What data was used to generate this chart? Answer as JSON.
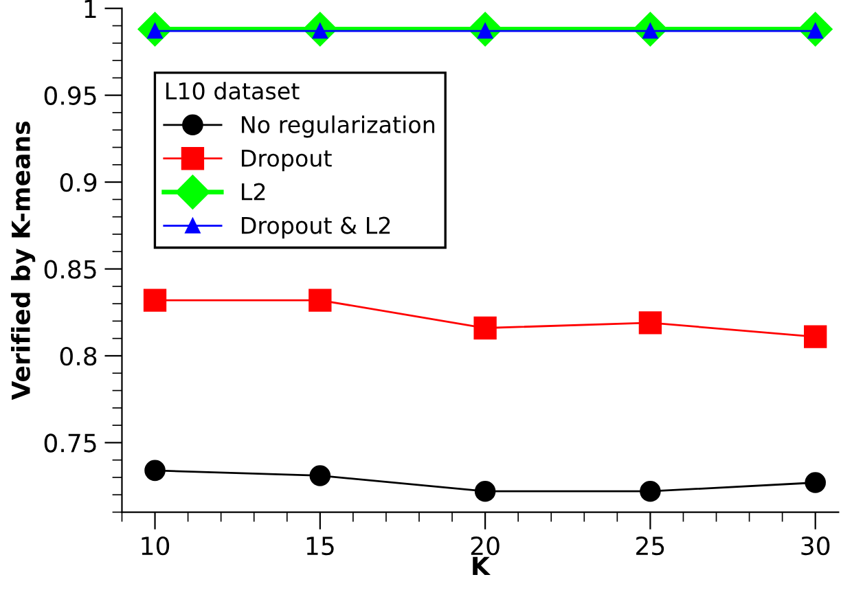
{
  "chart_data": {
    "type": "line",
    "xlabel": "K",
    "ylabel": "Verified by K-means",
    "legend_title": "L10 dataset",
    "x": [
      10,
      15,
      20,
      25,
      30
    ],
    "series": [
      {
        "name": "No regularization",
        "color": "#000000",
        "marker": "circle",
        "values": [
          0.734,
          0.731,
          0.722,
          0.722,
          0.727
        ]
      },
      {
        "name": "Dropout",
        "color": "#ff0000",
        "marker": "square",
        "values": [
          0.832,
          0.832,
          0.816,
          0.819,
          0.811
        ]
      },
      {
        "name": "L2",
        "color": "#00ff00",
        "marker": "diamond",
        "values": [
          0.988,
          0.988,
          0.988,
          0.988,
          0.988
        ]
      },
      {
        "name": "Dropout & L2",
        "color": "#0000ff",
        "marker": "triangle",
        "values": [
          0.987,
          0.987,
          0.987,
          0.987,
          0.987
        ]
      }
    ],
    "xlim": [
      9,
      30.7
    ],
    "xticks": [
      10,
      15,
      20,
      25,
      30
    ],
    "ylim": [
      0.71,
      1.0
    ],
    "yticks": [
      0.75,
      0.8,
      0.85,
      0.9,
      0.95,
      1
    ],
    "grid": false,
    "legend": "top left",
    "line_style": "solid"
  }
}
